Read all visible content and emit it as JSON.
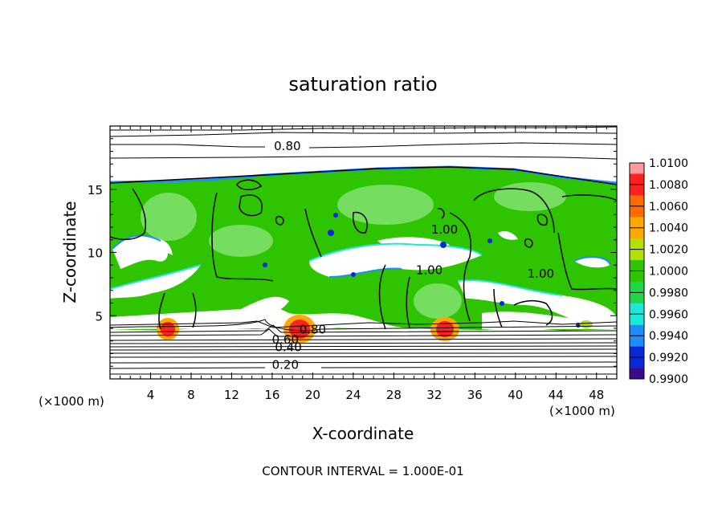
{
  "chart_data": {
    "type": "heatmap",
    "title": "saturation ratio",
    "xlabel": "X-coordinate",
    "ylabel": "Z-coordinate",
    "x_unit_left": "(×1000 m)",
    "x_unit_right": "(×1000 m)",
    "footer": "CONTOUR INTERVAL = 1.000E-01",
    "xlim": [
      0,
      50
    ],
    "ylim": [
      0,
      20
    ],
    "x_ticks": [
      4,
      8,
      12,
      16,
      20,
      24,
      28,
      32,
      36,
      40,
      44,
      48
    ],
    "y_ticks": [
      5,
      10,
      15
    ],
    "contour_labels": [
      {
        "text": "0.80",
        "x": 17.5,
        "y": 18.1
      },
      {
        "text": "1.00",
        "x": 33,
        "y": 11.5
      },
      {
        "text": "1.00",
        "x": 31.5,
        "y": 8.3
      },
      {
        "text": "1.00",
        "x": 42.5,
        "y": 8.0
      },
      {
        "text": "0.80",
        "x": 20.0,
        "y": 3.6
      },
      {
        "text": "0.60",
        "x": 17.3,
        "y": 2.8
      },
      {
        "text": "0.40",
        "x": 17.6,
        "y": 2.2
      },
      {
        "text": "0.20",
        "x": 17.3,
        "y": 0.8
      }
    ],
    "colorbar": {
      "ticks": [
        "1.0100",
        "1.0080",
        "1.0060",
        "1.0040",
        "1.0020",
        "1.0000",
        "0.9980",
        "0.9960",
        "0.9940",
        "0.9920",
        "0.9900"
      ],
      "colors": [
        "#ff9a9a",
        "#ff2020",
        "#ff6a00",
        "#ffa800",
        "#b4e000",
        "#2ec400",
        "#1ed84a",
        "#1ee8d8",
        "#1c8cff",
        "#0a28d8",
        "#3a0a8a"
      ]
    }
  }
}
